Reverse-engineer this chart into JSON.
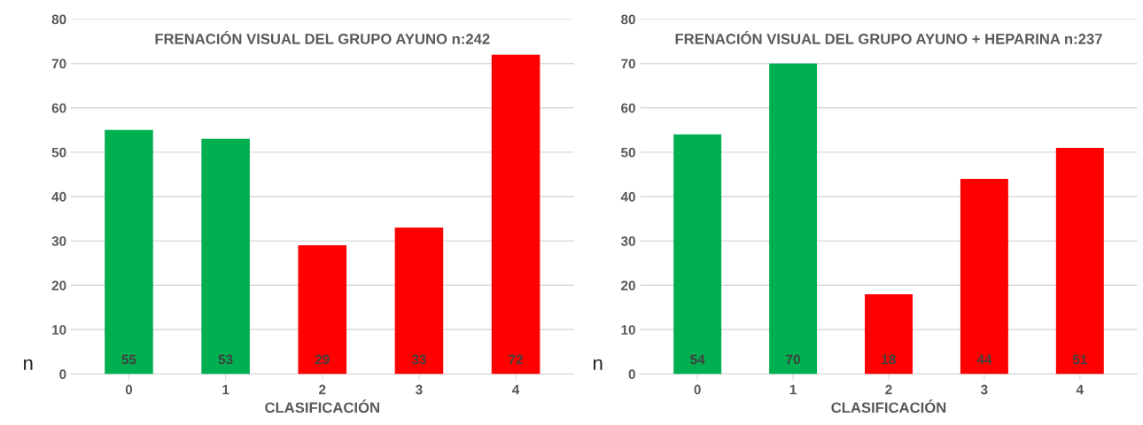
{
  "chart_data": [
    {
      "type": "bar",
      "title": "FRENACIÓN VISUAL DEL GRUPO AYUNO n:242",
      "xlabel": "CLASIFICACIÓN",
      "ylabel": "n",
      "categories": [
        "0",
        "1",
        "2",
        "3",
        "4"
      ],
      "values": [
        55,
        53,
        29,
        33,
        72
      ],
      "colors": [
        "#00b050",
        "#00b050",
        "#ff0000",
        "#ff0000",
        "#ff0000"
      ],
      "ylim": [
        0,
        80
      ],
      "yticks": [
        0,
        10,
        20,
        30,
        40,
        50,
        60,
        70,
        80
      ],
      "grid": "y",
      "data_labels": true
    },
    {
      "type": "bar",
      "title": "FRENACIÓN VISUAL DEL GRUPO AYUNO + HEPARINA n:237",
      "xlabel": "CLASIFICACIÓN",
      "ylabel": "n",
      "categories": [
        "0",
        "1",
        "2",
        "3",
        "4"
      ],
      "values": [
        54,
        70,
        18,
        44,
        51
      ],
      "colors": [
        "#00b050",
        "#00b050",
        "#ff0000",
        "#ff0000",
        "#ff0000"
      ],
      "ylim": [
        0,
        80
      ],
      "yticks": [
        0,
        10,
        20,
        30,
        40,
        50,
        60,
        70,
        80
      ],
      "grid": "y",
      "data_labels": true
    }
  ]
}
